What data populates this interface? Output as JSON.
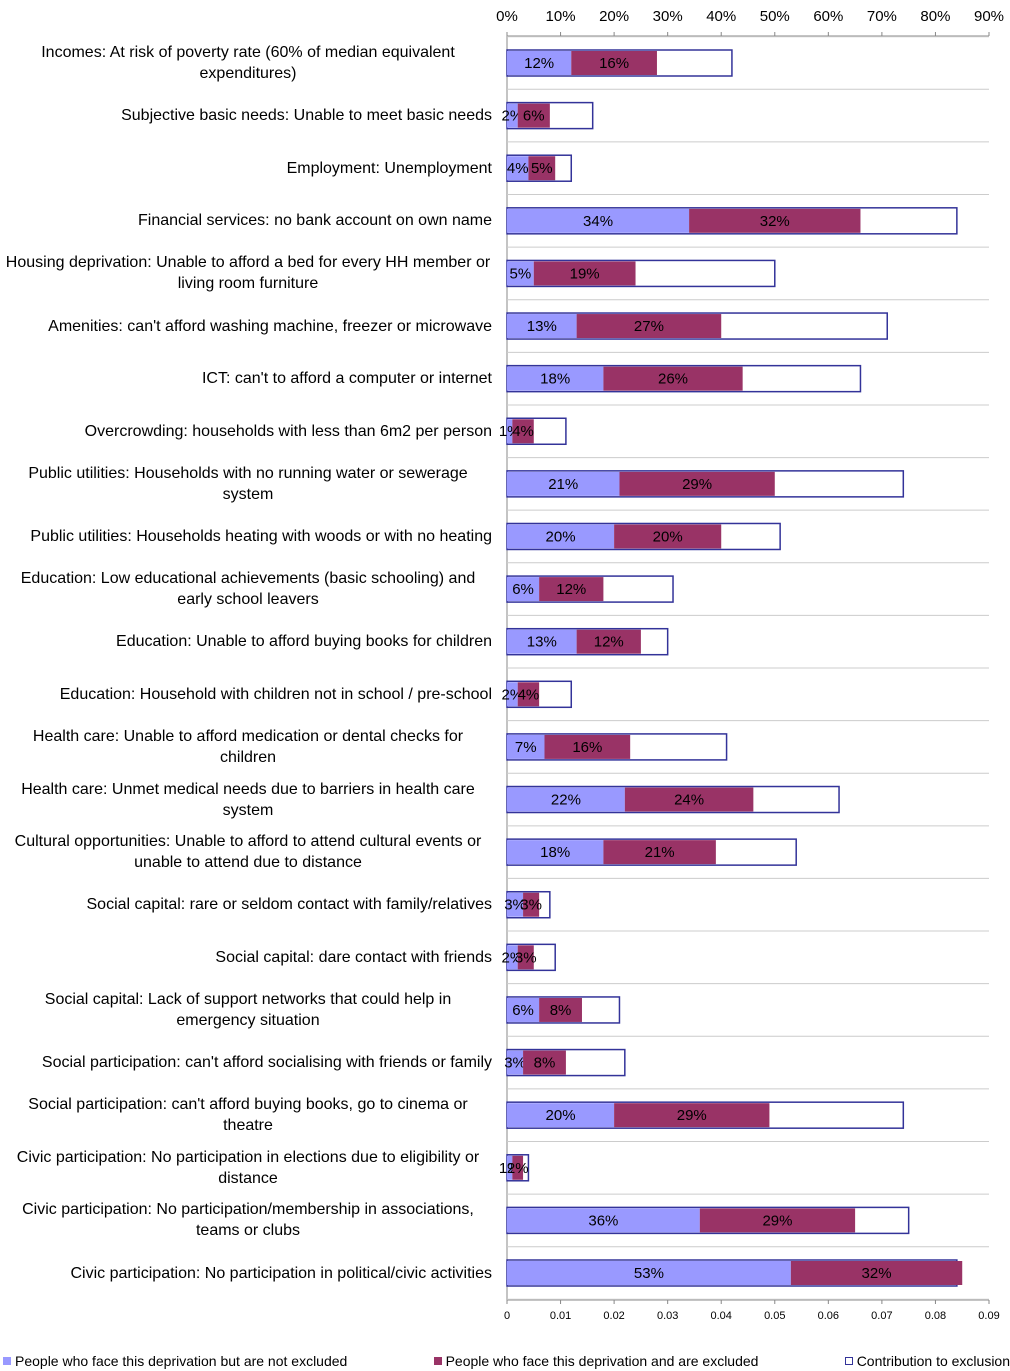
{
  "chart_data": {
    "type": "bar",
    "categories": [
      "Incomes: At risk of poverty rate (60% of median equivalent expenditures)",
      "Subjective basic needs: Unable to meet basic needs",
      "Employment: Unemployment",
      "Financial services: no bank account on own name",
      "Housing deprivation: Unable to afford a bed for every HH member or living room furniture",
      "Amenities: can't afford washing machine, freezer or microwave",
      "ICT: can't to afford a computer or internet",
      "Overcrowding: households with less than 6m2 per person",
      "Public utilities: Households with no running water or sewerage system",
      "Public utilities: Households heating with woods or with no heating",
      "Education: Low educational achievements (basic schooling) and early school leavers",
      "Education: Unable to afford buying books for children",
      "Education: Household with children not in school / pre-school",
      "Health care: Unable to afford medication or dental checks for children",
      "Health care: Unmet medical needs due to barriers in health care system",
      "Cultural opportunities: Unable to afford to attend cultural events or unable to attend due to distance",
      "Social capital: rare or seldom contact with family/relatives",
      "Social capital: dare contact with friends",
      "Social capital: Lack of support networks that could help in emergency situation",
      "Social participation: can't afford socialising with friends or family",
      "Social participation: can't afford buying books, go to cinema or theatre",
      "Civic participation: No participation in elections due to eligibility or distance",
      "Civic participation: No participation/membership in associations, teams or clubs",
      "Civic participation: No participation in political/civic activities"
    ],
    "series": [
      {
        "name": "People who face this deprivation but are not excluded",
        "color": "#9999ff",
        "stacked": true,
        "values": [
          12,
          2,
          4,
          34,
          5,
          13,
          18,
          1,
          21,
          20,
          6,
          13,
          2,
          7,
          22,
          18,
          3,
          2,
          6,
          3,
          20,
          1,
          36,
          53
        ],
        "value_labels": [
          "12%",
          "2%",
          "4%",
          "34%",
          "5%",
          "13%",
          "18%",
          "1%",
          "21%",
          "20%",
          "6%",
          "13%",
          "2%",
          "7%",
          "22%",
          "18%",
          "3%",
          "2%",
          "6%",
          "3%",
          "20%",
          "1%",
          "36%",
          "53%"
        ]
      },
      {
        "name": "People who face this deprivation and are excluded",
        "color": "#993366",
        "stacked": true,
        "values": [
          16,
          6,
          5,
          32,
          19,
          27,
          26,
          4,
          29,
          20,
          12,
          12,
          4,
          16,
          24,
          21,
          3,
          3,
          8,
          8,
          29,
          2,
          29,
          32
        ],
        "value_labels": [
          "16%",
          "6%",
          "5%",
          "32%",
          "19%",
          "27%",
          "26%",
          "4%",
          "29%",
          "20%",
          "12%",
          "12%",
          "4%",
          "16%",
          "24%",
          "21%",
          "3%",
          "3%",
          "8%",
          "8%",
          "29%",
          "2%",
          "29%",
          "32%"
        ]
      },
      {
        "name": "Contribution to exclusion",
        "color": "#333399",
        "axis": "x2",
        "values": [
          0.042,
          0.016,
          0.012,
          0.084,
          0.05,
          0.071,
          0.066,
          0.011,
          0.074,
          0.051,
          0.031,
          0.03,
          0.012,
          0.041,
          0.062,
          0.054,
          0.008,
          0.009,
          0.021,
          0.022,
          0.074,
          0.004,
          0.075,
          0.084
        ]
      }
    ],
    "xlim": [
      0,
      90
    ],
    "xticks": [
      {
        "value": 0,
        "label": "0%"
      },
      {
        "value": 10,
        "label": "10%"
      },
      {
        "value": 20,
        "label": "20%"
      },
      {
        "value": 30,
        "label": "30%"
      },
      {
        "value": 40,
        "label": "40%"
      },
      {
        "value": 50,
        "label": "50%"
      },
      {
        "value": 60,
        "label": "60%"
      },
      {
        "value": 70,
        "label": "70%"
      },
      {
        "value": 80,
        "label": "80%"
      },
      {
        "value": 90,
        "label": "90%"
      }
    ],
    "x2lim": [
      0,
      0.09
    ],
    "x2ticks": [
      0,
      0.01,
      0.02,
      0.03,
      0.04,
      0.05,
      0.06,
      0.07,
      0.08,
      0.09
    ],
    "legend": "bottom"
  }
}
